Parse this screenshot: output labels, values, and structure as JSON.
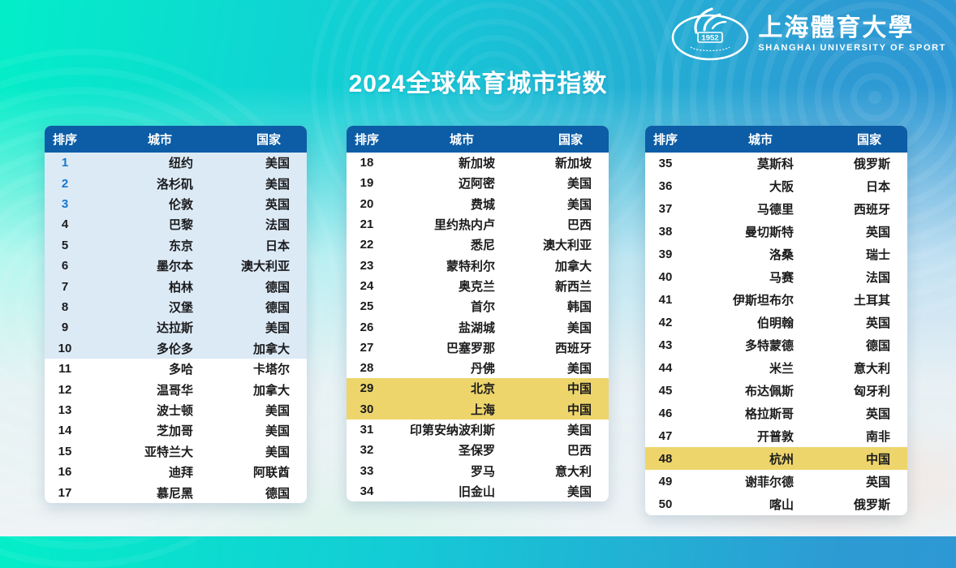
{
  "page": {
    "title": "2024全球体育城市指数"
  },
  "logo": {
    "name_zh": "上海體育大學",
    "name_en": "SHANGHAI UNIVERSITY OF SPORT",
    "year": "1952"
  },
  "table": {
    "headers": {
      "rank": "排序",
      "city": "城市",
      "country": "国家"
    }
  },
  "tables": [
    {
      "rows": [
        {
          "rank": "1",
          "city": "纽约",
          "country": "美国",
          "highlight": "top10",
          "rank_accent": true
        },
        {
          "rank": "2",
          "city": "洛杉矶",
          "country": "美国",
          "highlight": "top10",
          "rank_accent": true
        },
        {
          "rank": "3",
          "city": "伦敦",
          "country": "英国",
          "highlight": "top10",
          "rank_accent": true
        },
        {
          "rank": "4",
          "city": "巴黎",
          "country": "法国",
          "highlight": "top10",
          "rank_accent": false
        },
        {
          "rank": "5",
          "city": "东京",
          "country": "日本",
          "highlight": "top10",
          "rank_accent": false
        },
        {
          "rank": "6",
          "city": "墨尔本",
          "country": "澳大利亚",
          "highlight": "top10",
          "rank_accent": false
        },
        {
          "rank": "7",
          "city": "柏林",
          "country": "德国",
          "highlight": "top10",
          "rank_accent": false
        },
        {
          "rank": "8",
          "city": "汉堡",
          "country": "德国",
          "highlight": "top10",
          "rank_accent": false
        },
        {
          "rank": "9",
          "city": "达拉斯",
          "country": "美国",
          "highlight": "top10",
          "rank_accent": false
        },
        {
          "rank": "10",
          "city": "多伦多",
          "country": "加拿大",
          "highlight": "top10",
          "rank_accent": false
        },
        {
          "rank": "11",
          "city": "多哈",
          "country": "卡塔尔",
          "highlight": "none",
          "rank_accent": false
        },
        {
          "rank": "12",
          "city": "温哥华",
          "country": "加拿大",
          "highlight": "none",
          "rank_accent": false
        },
        {
          "rank": "13",
          "city": "波士顿",
          "country": "美国",
          "highlight": "none",
          "rank_accent": false
        },
        {
          "rank": "14",
          "city": "芝加哥",
          "country": "美国",
          "highlight": "none",
          "rank_accent": false
        },
        {
          "rank": "15",
          "city": "亚特兰大",
          "country": "美国",
          "highlight": "none",
          "rank_accent": false
        },
        {
          "rank": "16",
          "city": "迪拜",
          "country": "阿联酋",
          "highlight": "none",
          "rank_accent": false
        },
        {
          "rank": "17",
          "city": "慕尼黑",
          "country": "德国",
          "highlight": "none",
          "rank_accent": false
        }
      ]
    },
    {
      "rows": [
        {
          "rank": "18",
          "city": "新加坡",
          "country": "新加坡",
          "highlight": "none",
          "rank_accent": false
        },
        {
          "rank": "19",
          "city": "迈阿密",
          "country": "美国",
          "highlight": "none",
          "rank_accent": false
        },
        {
          "rank": "20",
          "city": "费城",
          "country": "美国",
          "highlight": "none",
          "rank_accent": false
        },
        {
          "rank": "21",
          "city": "里约热内卢",
          "country": "巴西",
          "highlight": "none",
          "rank_accent": false
        },
        {
          "rank": "22",
          "city": "悉尼",
          "country": "澳大利亚",
          "highlight": "none",
          "rank_accent": false
        },
        {
          "rank": "23",
          "city": "蒙特利尔",
          "country": "加拿大",
          "highlight": "none",
          "rank_accent": false
        },
        {
          "rank": "24",
          "city": "奥克兰",
          "country": "新西兰",
          "highlight": "none",
          "rank_accent": false
        },
        {
          "rank": "25",
          "city": "首尔",
          "country": "韩国",
          "highlight": "none",
          "rank_accent": false
        },
        {
          "rank": "26",
          "city": "盐湖城",
          "country": "美国",
          "highlight": "none",
          "rank_accent": false
        },
        {
          "rank": "27",
          "city": "巴塞罗那",
          "country": "西班牙",
          "highlight": "none",
          "rank_accent": false
        },
        {
          "rank": "28",
          "city": "丹佛",
          "country": "美国",
          "highlight": "none",
          "rank_accent": false
        },
        {
          "rank": "29",
          "city": "北京",
          "country": "中国",
          "highlight": "china",
          "rank_accent": false
        },
        {
          "rank": "30",
          "city": "上海",
          "country": "中国",
          "highlight": "china",
          "rank_accent": false
        },
        {
          "rank": "31",
          "city": "印第安纳波利斯",
          "country": "美国",
          "highlight": "none",
          "rank_accent": false
        },
        {
          "rank": "32",
          "city": "圣保罗",
          "country": "巴西",
          "highlight": "none",
          "rank_accent": false
        },
        {
          "rank": "33",
          "city": "罗马",
          "country": "意大利",
          "highlight": "none",
          "rank_accent": false
        },
        {
          "rank": "34",
          "city": "旧金山",
          "country": "美国",
          "highlight": "none",
          "rank_accent": false
        }
      ]
    },
    {
      "rows": [
        {
          "rank": "35",
          "city": "莫斯科",
          "country": "俄罗斯",
          "highlight": "none",
          "rank_accent": false
        },
        {
          "rank": "36",
          "city": "大阪",
          "country": "日本",
          "highlight": "none",
          "rank_accent": false
        },
        {
          "rank": "37",
          "city": "马德里",
          "country": "西班牙",
          "highlight": "none",
          "rank_accent": false
        },
        {
          "rank": "38",
          "city": "曼切斯特",
          "country": "英国",
          "highlight": "none",
          "rank_accent": false
        },
        {
          "rank": "39",
          "city": "洛桑",
          "country": "瑞士",
          "highlight": "none",
          "rank_accent": false
        },
        {
          "rank": "40",
          "city": "马赛",
          "country": "法国",
          "highlight": "none",
          "rank_accent": false
        },
        {
          "rank": "41",
          "city": "伊斯坦布尔",
          "country": "土耳其",
          "highlight": "none",
          "rank_accent": false
        },
        {
          "rank": "42",
          "city": "伯明翰",
          "country": "英国",
          "highlight": "none",
          "rank_accent": false
        },
        {
          "rank": "43",
          "city": "多特蒙德",
          "country": "德国",
          "highlight": "none",
          "rank_accent": false
        },
        {
          "rank": "44",
          "city": "米兰",
          "country": "意大利",
          "highlight": "none",
          "rank_accent": false
        },
        {
          "rank": "45",
          "city": "布达佩斯",
          "country": "匈牙利",
          "highlight": "none",
          "rank_accent": false
        },
        {
          "rank": "46",
          "city": "格拉斯哥",
          "country": "英国",
          "highlight": "none",
          "rank_accent": false
        },
        {
          "rank": "47",
          "city": "开普敦",
          "country": "南非",
          "highlight": "none",
          "rank_accent": false
        },
        {
          "rank": "48",
          "city": "杭州",
          "country": "中国",
          "highlight": "china",
          "rank_accent": false
        },
        {
          "rank": "49",
          "city": "谢菲尔德",
          "country": "英国",
          "highlight": "none",
          "rank_accent": false
        },
        {
          "rank": "50",
          "city": "喀山",
          "country": "俄罗斯",
          "highlight": "none",
          "rank_accent": false
        }
      ]
    }
  ],
  "colors": {
    "header_bg": "#0c5da6",
    "top10_row_bg": "#dceaf6",
    "china_highlight_bg": "#edd56b",
    "top3_rank_color": "#1577cd",
    "body_text": "#1b1b1d",
    "title_color": "#ffffff",
    "bg_teal": "#03eec8",
    "bg_blue": "#2d9bd3"
  }
}
